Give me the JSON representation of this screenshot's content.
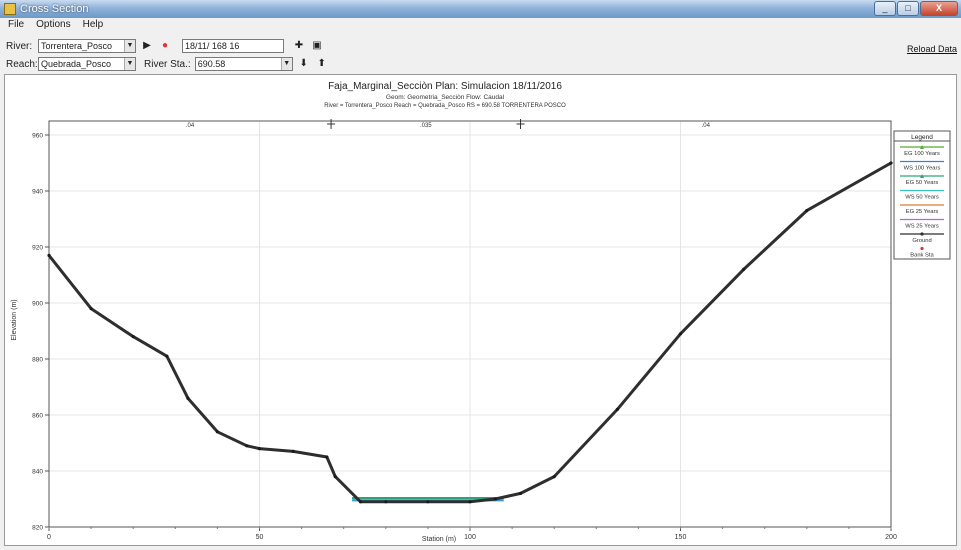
{
  "window": {
    "title": "Cross Section",
    "buttons": {
      "minimize": "_",
      "maximize": "□",
      "close": "X"
    }
  },
  "menu": [
    "File",
    "Options",
    "Help"
  ],
  "toolbar": {
    "river_label": "River:",
    "river_value": "Torrentera_Posco",
    "reach_label": "Reach:",
    "reach_value": "Quebrada_Posco",
    "river_sta_label": "River Sta.:",
    "river_sta_value": "690.58",
    "plan_value": "18/11/ 168 16",
    "reload_label": "Reload Data"
  },
  "chart_data": {
    "type": "line",
    "title": "Faja_Marginal_Secciòn    Plan: Simulacion    18/11/2016",
    "subtitle": "Geom: Geometria_Secciòn   Flow: Caudal",
    "subtitle2": "River = Torrentera_Posco   Reach = Quebrada_Posco   RS = 690.58        TORRENTERA POSCO",
    "xlabel": "Station (m)",
    "ylabel": "Elevation (m)",
    "xlim": [
      0,
      200
    ],
    "ylim": [
      820,
      965
    ],
    "x_ticks": [
      0,
      50,
      100,
      150,
      200
    ],
    "y_ticks": [
      820,
      840,
      860,
      880,
      900,
      920,
      940,
      960
    ],
    "grid": true,
    "manning": {
      "labels": [
        ".04",
        ".035",
        ".04"
      ],
      "breaks": [
        67,
        112
      ]
    },
    "ground": {
      "name": "Ground",
      "color": "#2e2e2e",
      "x": [
        0,
        10,
        20,
        28,
        33,
        40,
        47,
        50,
        58,
        66,
        68,
        74,
        80,
        90,
        100,
        106,
        112,
        120,
        135,
        150,
        165,
        180,
        200
      ],
      "y": [
        917,
        898,
        888,
        881,
        866,
        854,
        849,
        848,
        847,
        845,
        838,
        829,
        829,
        829,
        829,
        830,
        832,
        838,
        862,
        889,
        912,
        933,
        950
      ]
    },
    "water_surface": {
      "x_start": 72,
      "x_end": 108,
      "y": 829.5,
      "colors": [
        "#3a8fd6",
        "#36c2c9",
        "#2ea37b"
      ]
    },
    "legend_position": "top-right",
    "legend": [
      {
        "name": "EG 100 Years",
        "color": "#5aa832",
        "symbol": "line-tri"
      },
      {
        "name": "WS 100 Years",
        "color": "#3a7fd8",
        "symbol": "line"
      },
      {
        "name": "EG 50 Years",
        "color": "#2ea37b",
        "symbol": "line-tri"
      },
      {
        "name": "WS 50 Years",
        "color": "#36c2c9",
        "symbol": "line"
      },
      {
        "name": "EG 25 Years",
        "color": "#e07a2a",
        "symbol": "line"
      },
      {
        "name": "WS 25 Years",
        "color": "#b06ad8",
        "symbol": "line"
      },
      {
        "name": "Ground",
        "color": "#2e2e2e",
        "symbol": "line-dot"
      },
      {
        "name": "Bank Sta",
        "color": "#d33",
        "symbol": "dot"
      }
    ],
    "legend_title": "Legend"
  }
}
